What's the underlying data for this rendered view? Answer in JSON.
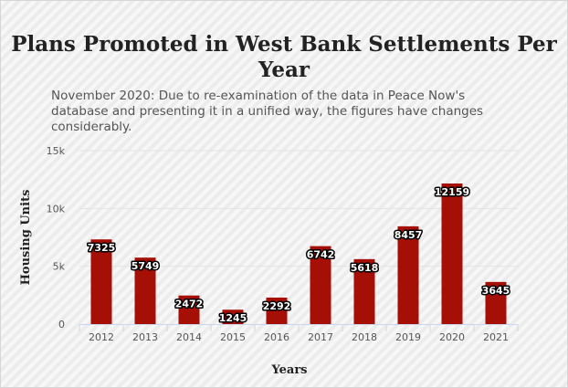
{
  "chart_data": {
    "type": "bar",
    "title": "Plans Promoted in West Bank Settlements Per Year",
    "subtitle": "November 2020: Due to re-examination of the data in Peace Now's database and presenting it in a unified way, the figures have changes considerably.",
    "xlabel": "Years",
    "ylabel": "Housing Units",
    "categories": [
      "2012",
      "2013",
      "2014",
      "2015",
      "2016",
      "2017",
      "2018",
      "2019",
      "2020",
      "2021"
    ],
    "values": [
      7325,
      5749,
      2472,
      1245,
      2292,
      6742,
      5618,
      8457,
      12159,
      3645
    ],
    "ylim": [
      0,
      15000
    ],
    "yticks": [
      0,
      5000,
      10000,
      15000
    ],
    "ytick_labels": [
      "0",
      "5k",
      "10k",
      "15k"
    ],
    "grid": true,
    "bar_color": "#a50f05"
  }
}
